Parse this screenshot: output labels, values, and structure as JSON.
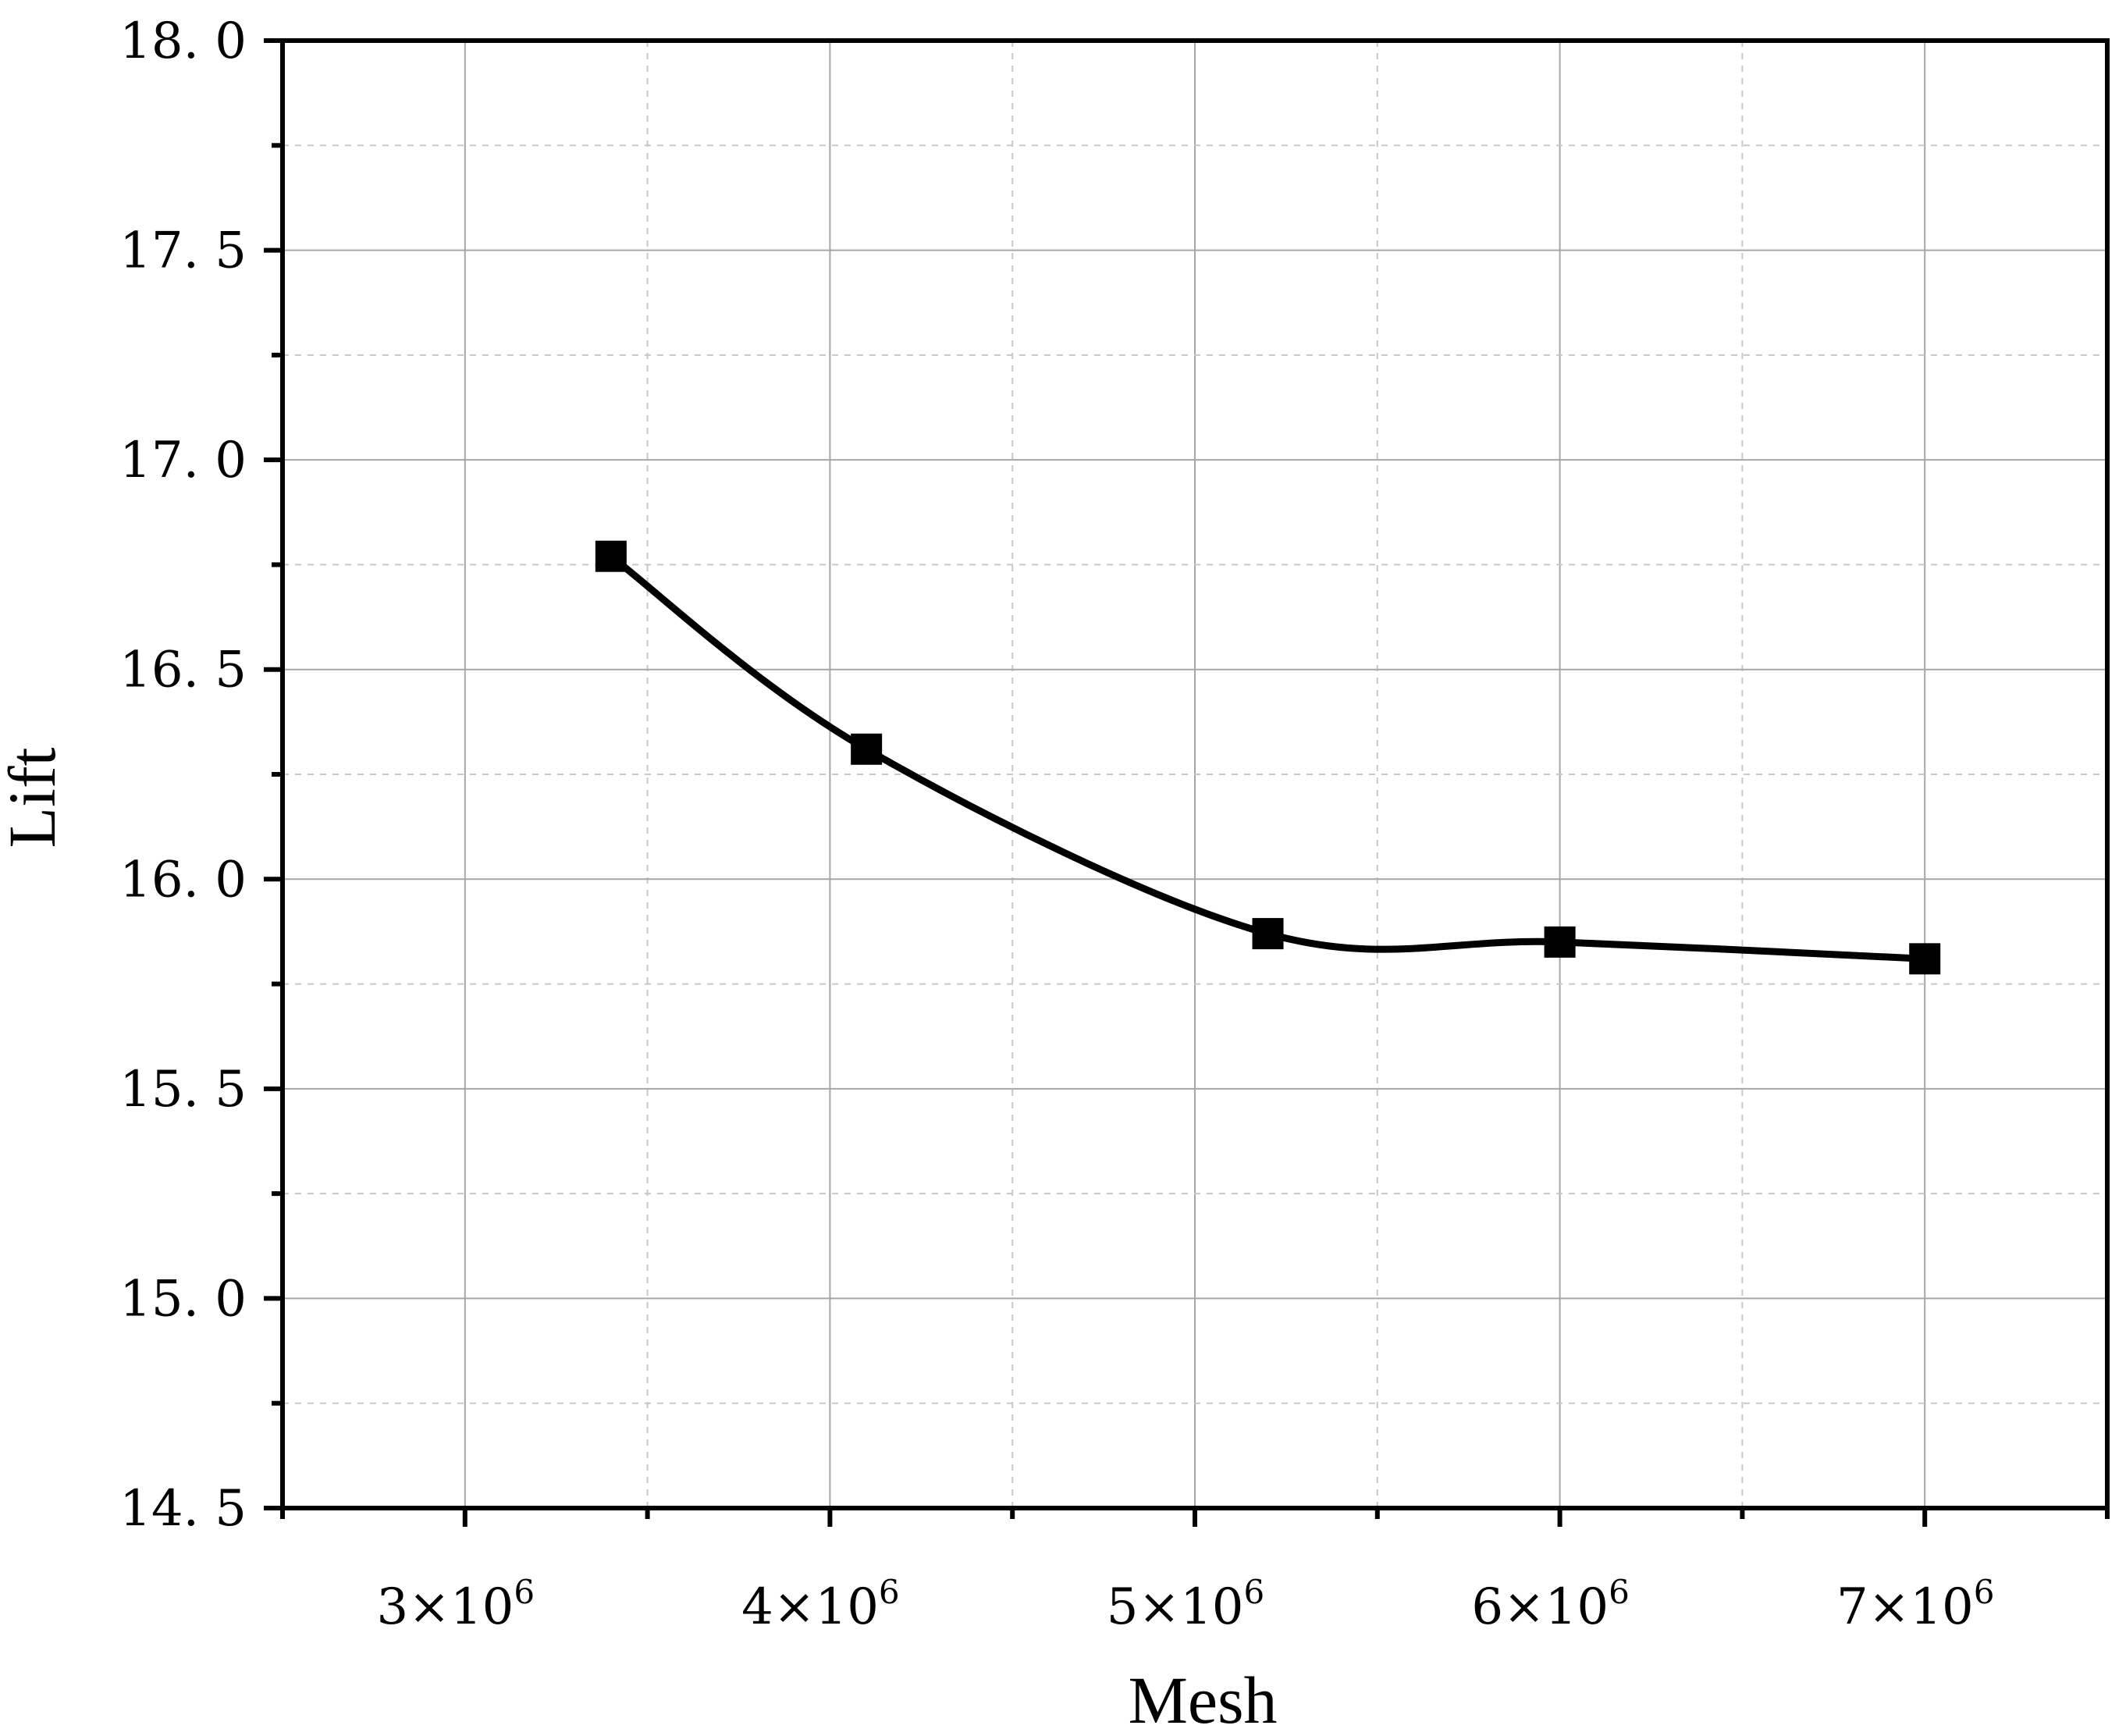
{
  "chart_data": {
    "type": "line",
    "xlabel": "Mesh",
    "ylabel": "Lift",
    "xlim": [
      2500000,
      7500000
    ],
    "ylim": [
      14.5,
      18.0
    ],
    "x_ticks": [
      {
        "value": 3000000,
        "base": "3×10",
        "exp": "6"
      },
      {
        "value": 4000000,
        "base": "4×10",
        "exp": "6"
      },
      {
        "value": 5000000,
        "base": "5×10",
        "exp": "6"
      },
      {
        "value": 6000000,
        "base": "6×10",
        "exp": "6"
      },
      {
        "value": 7000000,
        "base": "7×10",
        "exp": "6"
      }
    ],
    "x_minor_ticks": [
      3500000,
      4500000,
      5500000,
      6500000
    ],
    "y_ticks": [
      {
        "value": 14.5,
        "label": "14. 5"
      },
      {
        "value": 15.0,
        "label": "15. 0"
      },
      {
        "value": 15.5,
        "label": "15. 5"
      },
      {
        "value": 16.0,
        "label": "16. 0"
      },
      {
        "value": 16.5,
        "label": "16. 5"
      },
      {
        "value": 17.0,
        "label": "17. 0"
      },
      {
        "value": 17.5,
        "label": "17. 5"
      },
      {
        "value": 18.0,
        "label": "18. 0"
      }
    ],
    "y_minor_ticks": [
      14.75,
      15.25,
      15.75,
      16.25,
      16.75,
      17.25,
      17.75
    ],
    "grid": true,
    "series": [
      {
        "marker": "square",
        "color": "#000000",
        "smooth": true,
        "x": [
          3400000,
          4100000,
          5200000,
          6000000,
          7000000
        ],
        "y": [
          16.77,
          16.31,
          15.87,
          15.85,
          15.81
        ]
      }
    ]
  }
}
